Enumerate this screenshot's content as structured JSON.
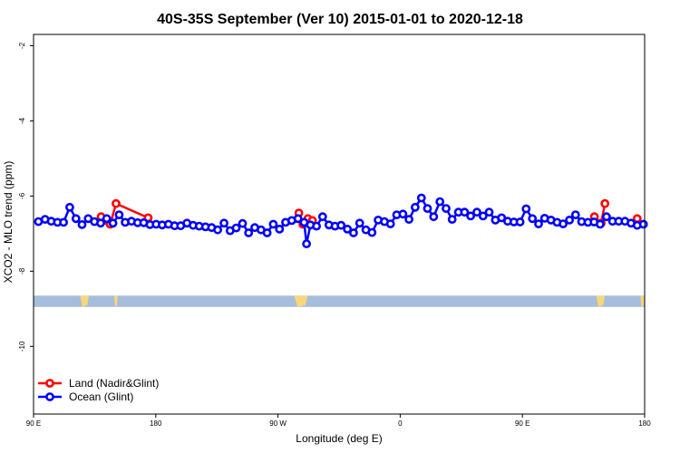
{
  "chart_data": {
    "type": "line",
    "title": "40S-35S September (Ver 10)   2015-01-01 to 2020-12-18",
    "xlabel": "Longitude (deg E)",
    "ylabel": "XCO2 - MLO trend (ppm)",
    "xlim": [
      90,
      450
    ],
    "ylim": [
      -11.8,
      -1.7
    ],
    "x_ticks": [
      {
        "value": 90,
        "label": "90 E"
      },
      {
        "value": 162,
        "label": "180"
      },
      {
        "value": 234,
        "label": "90 W"
      },
      {
        "value": 306,
        "label": "0"
      },
      {
        "value": 378,
        "label": "90 E"
      },
      {
        "value": 450,
        "label": "180"
      }
    ],
    "y_ticks": [
      {
        "value": -2,
        "label": "-2"
      },
      {
        "value": -4,
        "label": "-4"
      },
      {
        "value": -6,
        "label": "-6"
      },
      {
        "value": -8,
        "label": "-8"
      },
      {
        "value": -10,
        "label": "-10"
      }
    ],
    "grid": false,
    "legend_position": "bottom-left",
    "land_band": {
      "y_range": [
        -8.65,
        -8.95
      ],
      "color": "#a6bddb",
      "land_color": "#f7d77a"
    },
    "series": [
      {
        "name": "Land (Nadir&Glint)",
        "color": "#ff0000",
        "segments": [
          [
            [
              129.8,
              -6.55
            ],
            [
              133.2,
              -6.65
            ],
            [
              135.2,
              -6.75
            ],
            [
              138.6,
              -6.2
            ],
            [
              157.5,
              -6.58
            ]
          ],
          [
            [
              246.3,
              -6.45
            ],
            [
              248.7,
              -6.75
            ],
            [
              251.6,
              -6.6
            ],
            [
              254.3,
              -6.65
            ]
          ],
          [
            [
              420.4,
              -6.55
            ],
            [
              424.4,
              -6.72
            ],
            [
              426.6,
              -6.2
            ]
          ],
          [
            [
              445.6,
              -6.6
            ]
          ]
        ]
      },
      {
        "name": "Ocean (Glint)",
        "color": "#0000ff",
        "segments": [
          [
            [
              92.9,
              -6.68
            ],
            [
              96.8,
              -6.62
            ],
            [
              100.4,
              -6.67
            ],
            [
              104.1,
              -6.7
            ],
            [
              107.7,
              -6.7
            ],
            [
              111.3,
              -6.3
            ],
            [
              115.0,
              -6.6
            ],
            [
              118.6,
              -6.76
            ],
            [
              122.2,
              -6.6
            ],
            [
              125.9,
              -6.68
            ],
            [
              129.5,
              -6.72
            ],
            [
              133.1,
              -6.6
            ],
            [
              136.8,
              -6.72
            ],
            [
              140.4,
              -6.5
            ],
            [
              144.0,
              -6.7
            ],
            [
              147.7,
              -6.67
            ],
            [
              151.3,
              -6.71
            ],
            [
              154.9,
              -6.71
            ],
            [
              158.6,
              -6.76
            ],
            [
              162.2,
              -6.75
            ],
            [
              165.8,
              -6.77
            ],
            [
              169.5,
              -6.75
            ],
            [
              173.1,
              -6.79
            ],
            [
              176.7,
              -6.79
            ],
            [
              180.4,
              -6.72
            ],
            [
              184.0,
              -6.78
            ],
            [
              187.6,
              -6.8
            ],
            [
              191.3,
              -6.82
            ],
            [
              194.9,
              -6.84
            ],
            [
              198.5,
              -6.9
            ],
            [
              202.2,
              -6.72
            ],
            [
              205.8,
              -6.92
            ],
            [
              209.4,
              -6.85
            ],
            [
              213.1,
              -6.73
            ],
            [
              216.7,
              -6.98
            ],
            [
              220.3,
              -6.84
            ],
            [
              224.0,
              -6.9
            ],
            [
              227.6,
              -6.98
            ],
            [
              231.2,
              -6.75
            ],
            [
              234.9,
              -6.88
            ],
            [
              238.5,
              -6.7
            ],
            [
              242.1,
              -6.65
            ],
            [
              245.8,
              -6.6
            ],
            [
              249.4,
              -6.7
            ],
            [
              250.8,
              -7.27
            ],
            [
              253.1,
              -6.77
            ],
            [
              256.7,
              -6.8
            ],
            [
              260.3,
              -6.55
            ],
            [
              264.0,
              -6.77
            ],
            [
              267.6,
              -6.8
            ],
            [
              271.2,
              -6.78
            ],
            [
              274.9,
              -6.88
            ],
            [
              278.5,
              -6.98
            ],
            [
              282.1,
              -6.72
            ],
            [
              285.8,
              -6.9
            ],
            [
              289.4,
              -6.97
            ],
            [
              293.0,
              -6.64
            ],
            [
              296.7,
              -6.68
            ],
            [
              300.3,
              -6.74
            ],
            [
              303.9,
              -6.5
            ],
            [
              307.6,
              -6.48
            ],
            [
              311.2,
              -6.62
            ],
            [
              314.8,
              -6.3
            ],
            [
              318.5,
              -6.05
            ],
            [
              322.1,
              -6.33
            ],
            [
              325.7,
              -6.55
            ],
            [
              329.4,
              -6.15
            ],
            [
              333.0,
              -6.33
            ],
            [
              336.6,
              -6.62
            ],
            [
              340.3,
              -6.43
            ],
            [
              343.9,
              -6.43
            ],
            [
              347.5,
              -6.53
            ],
            [
              351.2,
              -6.43
            ],
            [
              354.8,
              -6.53
            ],
            [
              358.4,
              -6.43
            ],
            [
              362.1,
              -6.64
            ],
            [
              365.7,
              -6.58
            ],
            [
              369.3,
              -6.67
            ],
            [
              373.0,
              -6.69
            ],
            [
              376.6,
              -6.69
            ],
            [
              380.2,
              -6.34
            ],
            [
              383.9,
              -6.6
            ],
            [
              387.5,
              -6.74
            ],
            [
              391.1,
              -6.59
            ],
            [
              394.8,
              -6.64
            ],
            [
              398.4,
              -6.7
            ],
            [
              402.0,
              -6.74
            ],
            [
              405.7,
              -6.64
            ],
            [
              409.3,
              -6.5
            ],
            [
              412.9,
              -6.68
            ],
            [
              416.6,
              -6.7
            ],
            [
              420.2,
              -6.69
            ],
            [
              423.8,
              -6.75
            ],
            [
              427.5,
              -6.55
            ],
            [
              431.1,
              -6.67
            ],
            [
              434.7,
              -6.67
            ],
            [
              438.4,
              -6.67
            ],
            [
              442.0,
              -6.72
            ],
            [
              445.6,
              -6.78
            ],
            [
              449.3,
              -6.75
            ]
          ]
        ]
      }
    ]
  }
}
